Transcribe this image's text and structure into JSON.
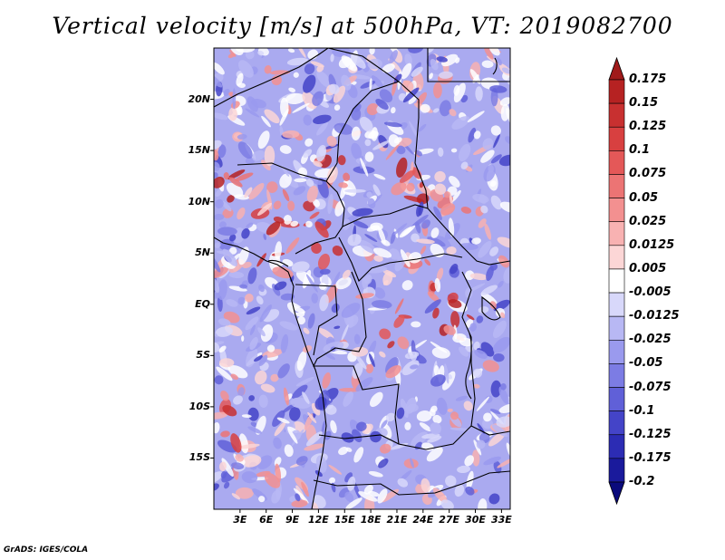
{
  "title": "Vertical velocity [m/s] at 500hPa, VT: 2019082700",
  "credit": "GrADS: IGES/COLA",
  "map": {
    "variable": "Vertical velocity",
    "units": "m/s",
    "level": "500hPa",
    "valid_time": "2019082700",
    "lon_range": [
      0,
      34
    ],
    "lat_range": [
      -20,
      25
    ],
    "lon_ticks": [
      "3E",
      "6E",
      "9E",
      "12E",
      "15E",
      "18E",
      "21E",
      "24E",
      "27E",
      "30E",
      "33E"
    ],
    "lon_tick_values": [
      3,
      6,
      9,
      12,
      15,
      18,
      21,
      24,
      27,
      30,
      33
    ],
    "lat_ticks": [
      "20N",
      "15N",
      "10N",
      "5N",
      "EQ",
      "5S",
      "10S",
      "15S"
    ],
    "lat_tick_values": [
      20,
      15,
      10,
      5,
      0,
      -5,
      -10,
      -15
    ]
  },
  "colorbar": {
    "labels": [
      "0.175",
      "0.15",
      "0.125",
      "0.1",
      "0.075",
      "0.05",
      "0.025",
      "0.0125",
      "0.005",
      "-0.005",
      "-0.0125",
      "-0.025",
      "-0.05",
      "-0.075",
      "-0.1",
      "-0.125",
      "-0.175",
      "-0.2"
    ],
    "colors": [
      "#a01a1a",
      "#b62222",
      "#c83030",
      "#d84040",
      "#e45858",
      "#ec7474",
      "#f39090",
      "#f8b2b2",
      "#fcd6d6",
      "#ffffff",
      "#d8d8fa",
      "#b8b8f4",
      "#9a9aee",
      "#7c7ce4",
      "#6060d8",
      "#4444c8",
      "#2c2cb4",
      "#1a1a9c",
      "#0a0a7c"
    ]
  },
  "icons": {
    "colorbar_top": "triangle-up",
    "colorbar_bottom": "triangle-down"
  }
}
